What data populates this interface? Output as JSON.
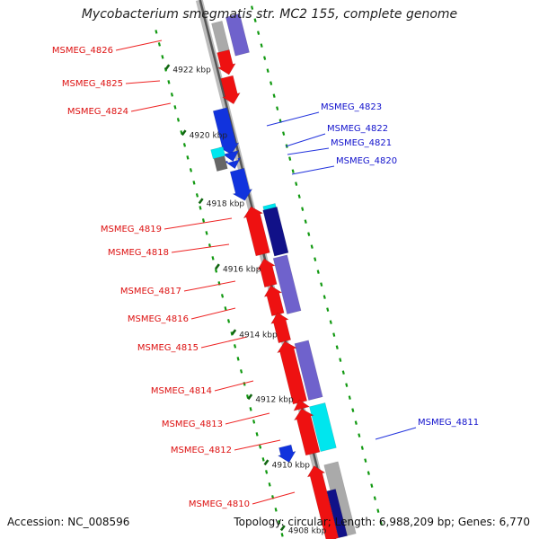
{
  "title": "Mycobacterium smegmatis str. MC2 155, complete genome",
  "accession": "Accession: NC_008596",
  "topology": "Topology: circular; Length: 6,988,209 bp; Genes: 6,770",
  "colors": {
    "red": "#ee1111",
    "blue": "#1133dd",
    "navy": "#111188",
    "purple": "#6f62cc",
    "cyan": "#00e6ee",
    "gray": "#aaaaaa",
    "dark": "#666666",
    "dots": "#119911"
  },
  "scale_labels": [
    "4922 kbp",
    "4920 kbp",
    "4918 kbp",
    "4916 kbp",
    "4914 kbp",
    "4912 kbp",
    "4910 kbp",
    "4908 kbp"
  ],
  "left_labels": [
    "MSMEG_4826",
    "MSMEG_4825",
    "MSMEG_4824",
    "MSMEG_4819",
    "MSMEG_4818",
    "MSMEG_4817",
    "MSMEG_4816",
    "MSMEG_4815",
    "MSMEG_4814",
    "MSMEG_4813",
    "MSMEG_4812",
    "MSMEG_4810"
  ],
  "right_labels": [
    "MSMEG_4823",
    "MSMEG_4822",
    "MSMEG_4821",
    "MSMEG_4820",
    "MSMEG_4811"
  ]
}
